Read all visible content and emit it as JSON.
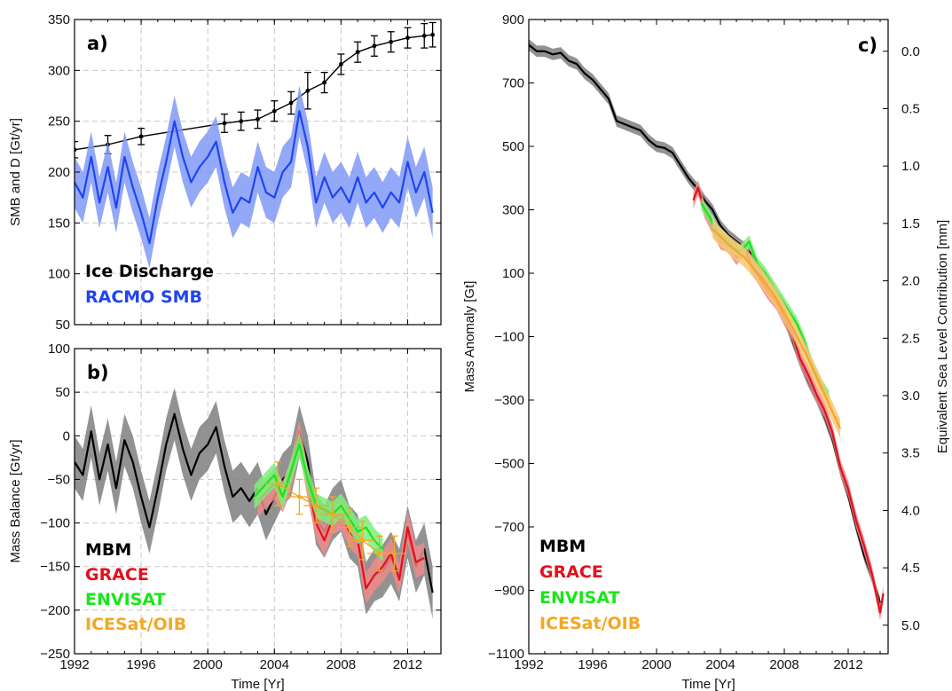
{
  "colors": {
    "mbm": "#000000",
    "mbm_band": "#7f7f7f",
    "grace": "#e3101d",
    "grace_band": "#f08a8a",
    "envisat": "#19e619",
    "envisat_band": "#7cf07c",
    "icesat": "#f5a623",
    "icesat_band": "#f7c779",
    "racmo": "#1f45f0",
    "racmo_band": "#8099f5"
  },
  "chart_data": [
    {
      "panel": "a)",
      "type": "line",
      "xlabel": "",
      "ylabel": "SMB and D [Gt/yr]",
      "xlim": [
        1992,
        2014
      ],
      "ylim": [
        50,
        350
      ],
      "x_ticks": [
        1992,
        1996,
        2000,
        2004,
        2008,
        2012
      ],
      "y_ticks": [
        50,
        100,
        150,
        200,
        250,
        300,
        350
      ],
      "grid": true,
      "legend_position": "bottom-left",
      "series": [
        {
          "name": "Ice Discharge",
          "color_key": "mbm",
          "x": [
            1992,
            1994,
            1996,
            2001,
            2002,
            2003,
            2004,
            2005,
            2006,
            2007,
            2008,
            2009,
            2010,
            2011,
            2012,
            2013,
            2013.5
          ],
          "y": [
            222,
            227,
            235,
            248,
            250,
            252,
            260,
            268,
            280,
            288,
            306,
            318,
            324,
            328,
            332,
            334,
            335
          ],
          "err": [
            8,
            9,
            8,
            9,
            9,
            9,
            10,
            11,
            18,
            10,
            10,
            10,
            10,
            10,
            10,
            12,
            12
          ]
        },
        {
          "name": "RACMO SMB",
          "color_key": "racmo",
          "band": 25,
          "x": [
            1992,
            1992.5,
            1993,
            1993.5,
            1994,
            1994.5,
            1995,
            1995.5,
            1996,
            1996.5,
            1997,
            1997.5,
            1998,
            1998.5,
            1999,
            1999.5,
            2000,
            2000.5,
            2001,
            2001.5,
            2002,
            2002.5,
            2003,
            2003.5,
            2004,
            2004.5,
            2005,
            2005.5,
            2006,
            2006.5,
            2007,
            2007.5,
            2008,
            2008.5,
            2009,
            2009.5,
            2010,
            2010.5,
            2011,
            2011.5,
            2012,
            2012.5,
            2013,
            2013.5
          ],
          "y": [
            190,
            175,
            215,
            170,
            205,
            165,
            215,
            185,
            160,
            130,
            175,
            210,
            250,
            215,
            190,
            205,
            215,
            230,
            190,
            160,
            175,
            170,
            205,
            180,
            175,
            200,
            210,
            260,
            225,
            170,
            195,
            175,
            185,
            170,
            195,
            170,
            180,
            165,
            180,
            170,
            210,
            180,
            200,
            160
          ]
        }
      ]
    },
    {
      "panel": "b)",
      "type": "line",
      "xlabel": "Time [Yr]",
      "ylabel": "Mass Balance [Gt/yr]",
      "xlim": [
        1992,
        2014
      ],
      "ylim": [
        -250,
        100
      ],
      "x_ticks": [
        1992,
        1996,
        2000,
        2004,
        2008,
        2012
      ],
      "y_ticks": [
        -250,
        -200,
        -150,
        -100,
        -50,
        0,
        50,
        100
      ],
      "grid": true,
      "legend_position": "bottom-left",
      "series": [
        {
          "name": "MBM",
          "color_key": "mbm",
          "band": 30,
          "x": [
            1992,
            1992.5,
            1993,
            1993.5,
            1994,
            1994.5,
            1995,
            1995.5,
            1996,
            1996.5,
            1997,
            1997.5,
            1998,
            1998.5,
            1999,
            1999.5,
            2000,
            2000.5,
            2001,
            2001.5,
            2002,
            2002.5,
            2003,
            2003.5,
            2004,
            2004.5,
            2005,
            2005.5,
            2006,
            2006.5,
            2007,
            2007.5,
            2008,
            2008.5,
            2009,
            2009.5,
            2010,
            2010.5,
            2011,
            2011.5,
            2012,
            2012.5,
            2013,
            2013.5
          ],
          "y": [
            -30,
            -45,
            5,
            -50,
            -10,
            -60,
            -5,
            -30,
            -70,
            -105,
            -60,
            -10,
            25,
            -15,
            -45,
            -20,
            -10,
            10,
            -35,
            -70,
            -60,
            -75,
            -60,
            -90,
            -70,
            -50,
            -40,
            5,
            -30,
            -95,
            -110,
            -90,
            -80,
            -110,
            -120,
            -175,
            -160,
            -155,
            -140,
            -160,
            -110,
            -150,
            -130,
            -180
          ]
        },
        {
          "name": "GRACE",
          "color_key": "grace",
          "band": 18,
          "x": [
            2003.0,
            2003.5,
            2004,
            2004.5,
            2005,
            2005.5,
            2006,
            2006.5,
            2007,
            2007.5,
            2008,
            2008.5,
            2009,
            2009.5,
            2010,
            2010.5,
            2011,
            2011.5,
            2012,
            2012.5,
            2013
          ],
          "y": [
            -75,
            -65,
            -55,
            -70,
            -45,
            0,
            -55,
            -100,
            -120,
            -95,
            -90,
            -110,
            -120,
            -175,
            -160,
            -150,
            -135,
            -165,
            -105,
            -145,
            -140
          ]
        },
        {
          "name": "ENVISAT",
          "color_key": "envisat",
          "band": 14,
          "x": [
            2002.8,
            2003.5,
            2004,
            2004.5,
            2005,
            2005.5,
            2006,
            2006.5,
            2007,
            2007.5,
            2008,
            2008.5,
            2009,
            2009.5,
            2010,
            2010.5
          ],
          "y": [
            -70,
            -55,
            -45,
            -70,
            -40,
            -10,
            -50,
            -80,
            -85,
            -90,
            -80,
            -95,
            -110,
            -105,
            -120,
            -130
          ]
        },
        {
          "name": "ICESat/OIB",
          "color_key": "icesat",
          "x": [
            2004.2,
            2005.5,
            2006.5,
            2007.5,
            2008.5,
            2009.3,
            2010.3,
            2011.2
          ],
          "y": [
            -55,
            -70,
            -80,
            -90,
            -105,
            -120,
            -135,
            -135
          ],
          "err": [
            25,
            20,
            20,
            20,
            22,
            22,
            20,
            20
          ]
        }
      ]
    },
    {
      "panel": "c)",
      "type": "line",
      "xlabel": "Time [Yr]",
      "ylabel": "Mass Anomaly [Gt]",
      "ylabel_right": "Equivalent Sea Level Contribution [mm]",
      "xlim": [
        1992,
        2014.5
      ],
      "ylim": [
        -1100,
        900
      ],
      "x_ticks": [
        1992,
        1996,
        2000,
        2004,
        2008,
        2012
      ],
      "y_ticks": [
        -1100,
        -900,
        -700,
        -500,
        -300,
        -100,
        100,
        300,
        500,
        700,
        900
      ],
      "y_ticks_right": [
        "0.0",
        "0.5",
        "1.0",
        "1.5",
        "2.0",
        "2.5",
        "3.0",
        "3.5",
        "4.0",
        "4.5",
        "5.0"
      ],
      "right_axis_gt_per_mm": 362,
      "grid": false,
      "legend_position": "bottom-left",
      "series": [
        {
          "name": "MBM",
          "color_key": "mbm",
          "band": 18,
          "x": [
            1992,
            1992.5,
            1993,
            1993.5,
            1994,
            1994.5,
            1995,
            1995.5,
            1996,
            1996.5,
            1997,
            1997.5,
            1998,
            1998.5,
            1999,
            1999.5,
            2000,
            2000.5,
            2001,
            2001.5,
            2002,
            2002.5,
            2003,
            2003.5,
            2004,
            2004.5,
            2005,
            2005.5,
            2006,
            2006.5,
            2007,
            2007.5,
            2008,
            2008.5,
            2009,
            2009.5,
            2010,
            2010.5,
            2011,
            2011.5,
            2012,
            2012.5,
            2013,
            2013.5,
            2014
          ],
          "y": [
            820,
            800,
            800,
            790,
            795,
            770,
            760,
            730,
            710,
            680,
            650,
            580,
            570,
            560,
            550,
            520,
            500,
            495,
            480,
            440,
            400,
            370,
            330,
            300,
            250,
            220,
            200,
            180,
            160,
            100,
            60,
            20,
            -40,
            -110,
            -180,
            -240,
            -290,
            -350,
            -420,
            -520,
            -600,
            -700,
            -790,
            -860,
            -940
          ]
        },
        {
          "name": "GRACE",
          "color_key": "grace",
          "band": 25,
          "x": [
            2002.3,
            2002.6,
            2003,
            2003.5,
            2004,
            2004.5,
            2005,
            2005.5,
            2006,
            2006.5,
            2007,
            2007.5,
            2008,
            2008.5,
            2009,
            2009.5,
            2010,
            2010.5,
            2011,
            2011.5,
            2012,
            2012.5,
            2013,
            2013.5,
            2014,
            2014.2
          ],
          "y": [
            330,
            370,
            300,
            250,
            200,
            190,
            150,
            180,
            120,
            80,
            40,
            10,
            -40,
            -90,
            -170,
            -220,
            -280,
            -330,
            -400,
            -510,
            -580,
            -680,
            -760,
            -850,
            -970,
            -910
          ]
        },
        {
          "name": "ENVISAT",
          "color_key": "envisat",
          "band": 20,
          "x": [
            2002.8,
            2003.3,
            2003.8,
            2004.3,
            2004.8,
            2005.3,
            2005.8,
            2006.3,
            2006.8,
            2007.3,
            2007.8,
            2008.3,
            2008.8,
            2009.3,
            2009.8,
            2010.3,
            2010.8
          ],
          "y": [
            320,
            280,
            230,
            210,
            180,
            170,
            200,
            130,
            100,
            60,
            20,
            -20,
            -60,
            -120,
            -200,
            -250,
            -290
          ]
        },
        {
          "name": "ICESat/OIB",
          "color_key": "icesat",
          "band": 30,
          "x": [
            2003.5,
            2004.5,
            2005.5,
            2006.5,
            2007.5,
            2008.5,
            2009.5,
            2010.5,
            2011.5
          ],
          "y": [
            240,
            190,
            150,
            90,
            20,
            -70,
            -170,
            -280,
            -390
          ]
        }
      ]
    }
  ]
}
